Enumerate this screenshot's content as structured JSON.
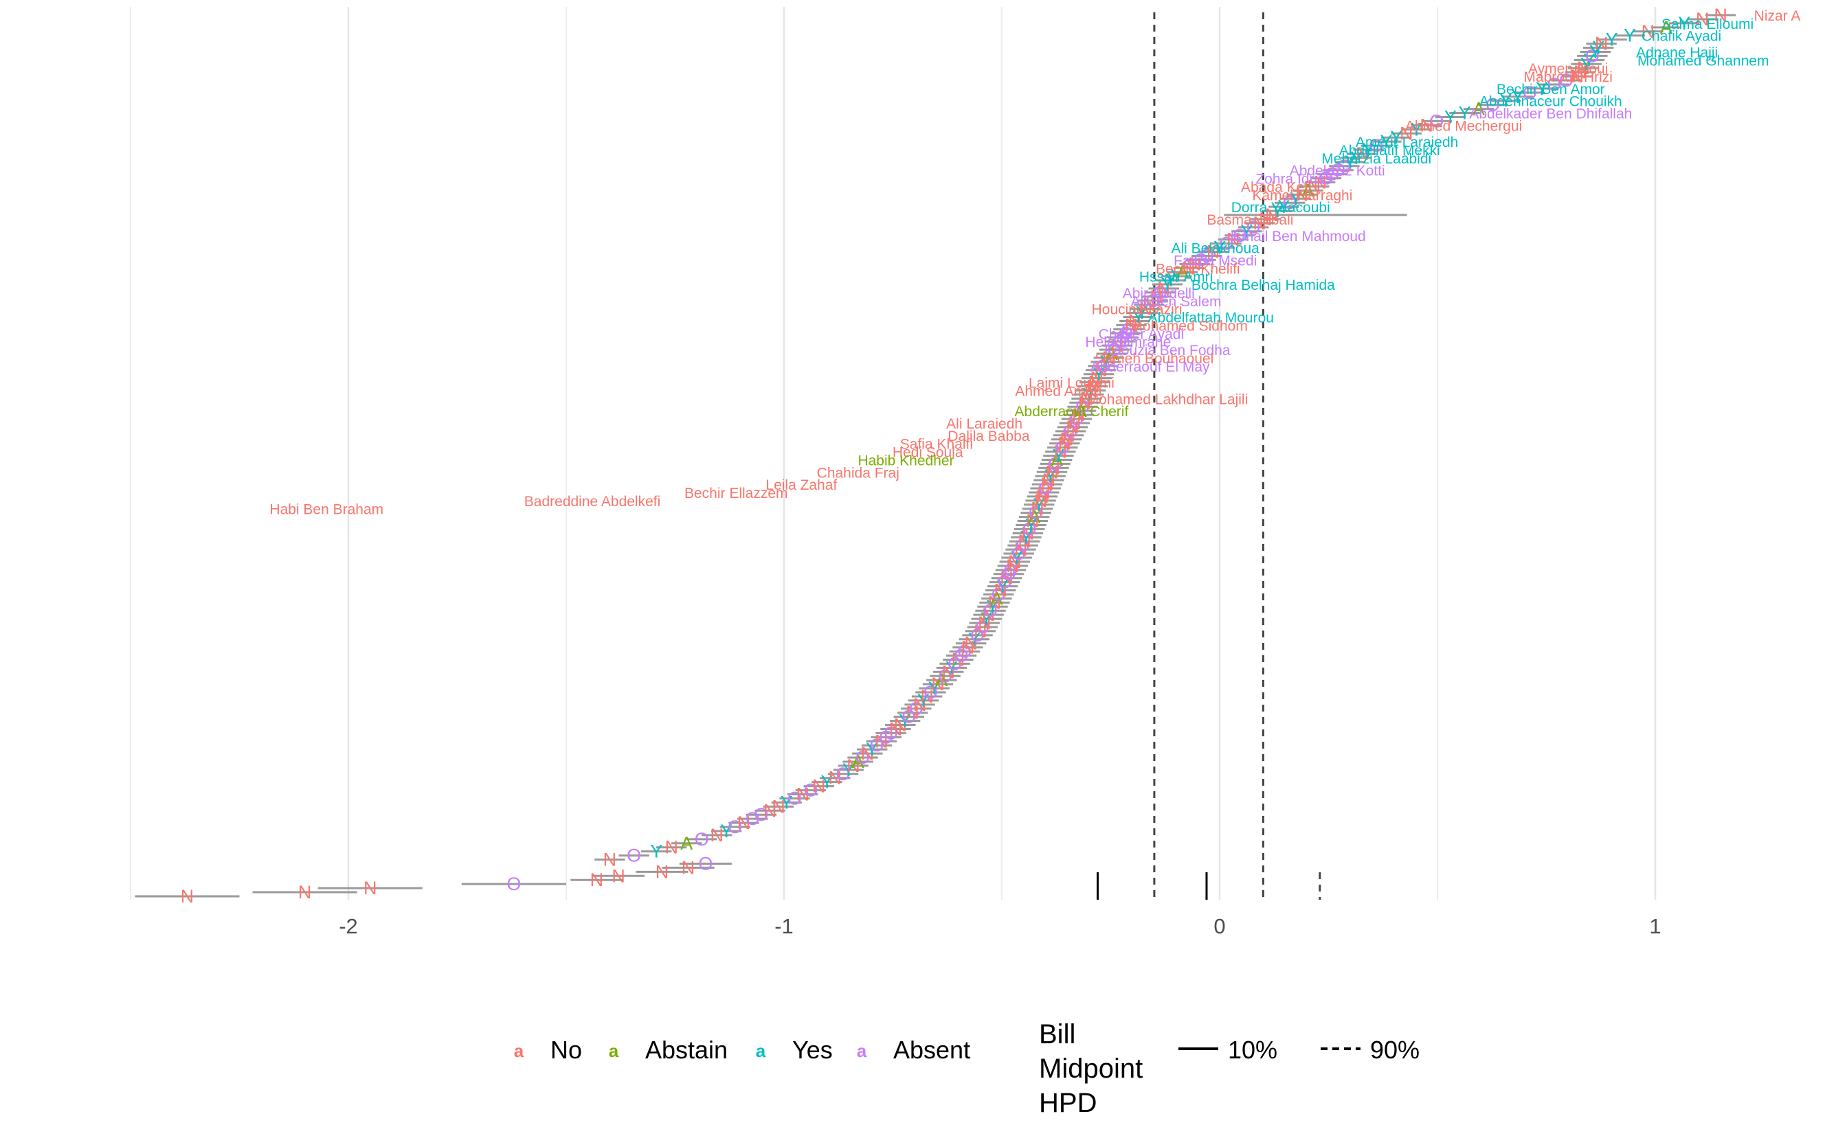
{
  "chart_data": {
    "type": "scatter",
    "title": "",
    "xlabel": "",
    "ylabel": "",
    "xlim": [
      -2.5,
      1.35
    ],
    "x_ticks": [
      -2,
      -1,
      0,
      1
    ],
    "x_tick_labels": [
      "-2",
      "-1",
      "0",
      "1"
    ],
    "grid": "vertical",
    "legend": {
      "position": "bottom",
      "vote_items": [
        {
          "key": "No",
          "glyph": "a",
          "color": "#F8766D"
        },
        {
          "key": "Abstain",
          "glyph": "a",
          "color": "#7CAE00"
        },
        {
          "key": "Yes",
          "glyph": "a",
          "color": "#00BFC4"
        },
        {
          "key": "Absent",
          "glyph": "a",
          "color": "#C77CFF"
        }
      ],
      "hpd_title_lines": [
        "Bill",
        "Midpoint",
        "HPD"
      ],
      "hpd_items": [
        {
          "label": "10%",
          "linetype": "solid"
        },
        {
          "label": "90%",
          "linetype": "dashed"
        }
      ]
    },
    "colors": {
      "No": "#F8766D",
      "Abstain": "#7CAE00",
      "Yes": "#00BFC4",
      "Absent": "#C77CFF",
      "interval": "#9a9a9a",
      "grid": "#e5e5e5"
    },
    "bill_midpoint_hpd": {
      "solid_10pct": [
        -0.28,
        -0.03
      ],
      "dashed_90pct": [
        -0.15,
        0.1,
        0.23
      ]
    },
    "point_layer": {
      "count": 217,
      "symbols": {
        "No": "N",
        "Abstain": "A",
        "Yes": "Y",
        "Absent": "O"
      },
      "x_quantile_knots": [
        [
          0.0,
          -2.37
        ],
        [
          0.01,
          -2.1
        ],
        [
          0.02,
          -1.95
        ],
        [
          0.03,
          -1.62
        ],
        [
          0.04,
          -1.42
        ],
        [
          0.05,
          -1.3
        ],
        [
          0.07,
          -1.15
        ],
        [
          0.1,
          -1.02
        ],
        [
          0.14,
          -0.86
        ],
        [
          0.2,
          -0.72
        ],
        [
          0.25,
          -0.63
        ],
        [
          0.3,
          -0.55
        ],
        [
          0.33,
          -0.52
        ],
        [
          0.4,
          -0.45
        ],
        [
          0.5,
          -0.37
        ],
        [
          0.6,
          -0.27
        ],
        [
          0.65,
          -0.2
        ],
        [
          0.7,
          -0.11
        ],
        [
          0.73,
          -0.02
        ],
        [
          0.76,
          0.08
        ],
        [
          0.8,
          0.2
        ],
        [
          0.85,
          0.35
        ],
        [
          0.88,
          0.5
        ],
        [
          0.9,
          0.64
        ],
        [
          0.93,
          0.82
        ],
        [
          0.97,
          0.88
        ],
        [
          0.99,
          1.06
        ],
        [
          1.0,
          1.15
        ]
      ],
      "vote_pattern": [
        "Absent",
        "No",
        "No",
        "Yes",
        "Absent",
        "No",
        "Absent",
        "No",
        "Yes",
        "No",
        "Absent",
        "Yes",
        "No",
        "Abstain",
        "Absent",
        "No",
        "Yes",
        "Absent",
        "No",
        "Absent"
      ],
      "tail_votes": [
        {
          "rank": 0,
          "x": -2.37,
          "vote": "No"
        },
        {
          "rank": 1,
          "x": -2.1,
          "vote": "No"
        },
        {
          "rank": 2,
          "x": -1.95,
          "vote": "No"
        },
        {
          "rank": 3,
          "x": -1.62,
          "vote": "Absent"
        },
        {
          "rank": 4,
          "x": -1.43,
          "vote": "No"
        },
        {
          "rank": 5,
          "x": -1.38,
          "vote": "No"
        },
        {
          "rank": 6,
          "x": -1.28,
          "vote": "No"
        },
        {
          "rank": 7,
          "x": -1.22,
          "vote": "No"
        },
        {
          "rank": 8,
          "x": -1.18,
          "vote": "Absent"
        }
      ],
      "wide_interval": {
        "rank": 167,
        "x": 0.08,
        "lower": 0.01,
        "upper": 0.43
      }
    },
    "labels": [
      {
        "name": "Nizar A",
        "x": 1.28,
        "rank": 216,
        "vote": "No"
      },
      {
        "name": "Salma Elloumi",
        "x": 1.12,
        "rank": 214,
        "vote": "Yes"
      },
      {
        "name": "Chafik Ayadi",
        "x": 1.06,
        "rank": 211,
        "vote": "Yes"
      },
      {
        "name": "Adnane Hajji",
        "x": 1.05,
        "rank": 207,
        "vote": "Yes"
      },
      {
        "name": "Mohamed Ghannem",
        "x": 1.11,
        "rank": 205,
        "vote": "Yes"
      },
      {
        "name": "Aymen Aloui",
        "x": 0.8,
        "rank": 203,
        "vote": "No"
      },
      {
        "name": "Mabrouk Hrizi",
        "x": 0.8,
        "rank": 201,
        "vote": "No"
      },
      {
        "name": "Bechir Ben Amor",
        "x": 0.76,
        "rank": 198,
        "vote": "Yes"
      },
      {
        "name": "Abdennaceur Chouikh",
        "x": 0.76,
        "rank": 195,
        "vote": "Yes"
      },
      {
        "name": "Abdelkader Ben Dhifallah",
        "x": 0.76,
        "rank": 192,
        "vote": "Absent"
      },
      {
        "name": "Ahmed Mechergui",
        "x": 0.56,
        "rank": 189,
        "vote": "No"
      },
      {
        "name": "Ameur Laraiedh",
        "x": 0.43,
        "rank": 185,
        "vote": "Yes"
      },
      {
        "name": "Abdellatif Mekki",
        "x": 0.39,
        "rank": 183,
        "vote": "Yes"
      },
      {
        "name": "Meherzia Laabidi",
        "x": 0.36,
        "rank": 181,
        "vote": "Yes"
      },
      {
        "name": "Abdelaziz Kotti",
        "x": 0.27,
        "rank": 178,
        "vote": "Absent"
      },
      {
        "name": "Zohra Idriss",
        "x": 0.17,
        "rank": 176,
        "vote": "Absent"
      },
      {
        "name": "Abada Kefi",
        "x": 0.13,
        "rank": 174,
        "vote": "No"
      },
      {
        "name": "Kamel Harraghi",
        "x": 0.19,
        "rank": 172,
        "vote": "No"
      },
      {
        "name": "Dorra Yaacoubi",
        "x": 0.14,
        "rank": 169,
        "vote": "Yes"
      },
      {
        "name": "Basma Jebali",
        "x": 0.07,
        "rank": 166,
        "vote": "No"
      },
      {
        "name": "Ismail Ben Mahmoud",
        "x": 0.18,
        "rank": 162,
        "vote": "Absent"
      },
      {
        "name": "Ali Belakhoua",
        "x": -0.01,
        "rank": 159,
        "vote": "Yes"
      },
      {
        "name": "Fatma Msedi",
        "x": -0.01,
        "rank": 156,
        "vote": "Absent"
      },
      {
        "name": "Bechir Khelifi",
        "x": -0.05,
        "rank": 154,
        "vote": "No"
      },
      {
        "name": "Hssan Amri",
        "x": -0.1,
        "rank": 152,
        "vote": "Yes"
      },
      {
        "name": "Bochra Belhaj Hamida",
        "x": 0.1,
        "rank": 150,
        "vote": "Yes"
      },
      {
        "name": "Abir Abdelli",
        "x": -0.14,
        "rank": 148,
        "vote": "Absent"
      },
      {
        "name": "Ali Ben Salem",
        "x": -0.1,
        "rank": 146,
        "vote": "Absent"
      },
      {
        "name": "Houcine Jaziri",
        "x": -0.19,
        "rank": 144,
        "vote": "No"
      },
      {
        "name": "Abdelfattah Mourou",
        "x": -0.02,
        "rank": 142,
        "vote": "Yes"
      },
      {
        "name": "Mohamed Sidhom",
        "x": -0.07,
        "rank": 140,
        "vote": "No"
      },
      {
        "name": "Chaker Ayadi",
        "x": -0.18,
        "rank": 138,
        "vote": "Absent"
      },
      {
        "name": "Hela Omrane",
        "x": -0.21,
        "rank": 136,
        "vote": "Absent"
      },
      {
        "name": "Faouzia Ben Fodha",
        "x": -0.12,
        "rank": 134,
        "vote": "Absent"
      },
      {
        "name": "Sameh Bouhaouel",
        "x": -0.15,
        "rank": 132,
        "vote": "No"
      },
      {
        "name": "Abderraouf El May",
        "x": -0.16,
        "rank": 130,
        "vote": "Absent"
      },
      {
        "name": "Lajmi Lourimi",
        "x": -0.34,
        "rank": 126,
        "vote": "No"
      },
      {
        "name": "Ahmed Ameri",
        "x": -0.37,
        "rank": 124,
        "vote": "No"
      },
      {
        "name": "Mohamed Lakhdhar Lajili",
        "x": -0.12,
        "rank": 122,
        "vote": "No"
      },
      {
        "name": "Abderraouf Cherif",
        "x": -0.34,
        "rank": 119,
        "vote": "Abstain"
      },
      {
        "name": "Ali Laraiedh",
        "x": -0.54,
        "rank": 116,
        "vote": "No"
      },
      {
        "name": "Dalila Babba",
        "x": -0.53,
        "rank": 113,
        "vote": "No"
      },
      {
        "name": "Safia Khalfi",
        "x": -0.65,
        "rank": 111,
        "vote": "No"
      },
      {
        "name": "Hedi Soula",
        "x": -0.67,
        "rank": 109,
        "vote": "No"
      },
      {
        "name": "Habib Khedher",
        "x": -0.72,
        "rank": 107,
        "vote": "Abstain"
      },
      {
        "name": "Chahida Fraj",
        "x": -0.83,
        "rank": 104,
        "vote": "No"
      },
      {
        "name": "Leila Zahaf",
        "x": -0.96,
        "rank": 101,
        "vote": "No"
      },
      {
        "name": "Bechir Ellazzem",
        "x": -1.11,
        "rank": 99,
        "vote": "No"
      },
      {
        "name": "Badreddine Abdelkefi",
        "x": -1.44,
        "rank": 97,
        "vote": "No"
      },
      {
        "name": "Habi Ben Braham",
        "x": -2.05,
        "rank": 95,
        "vote": "No"
      }
    ]
  }
}
